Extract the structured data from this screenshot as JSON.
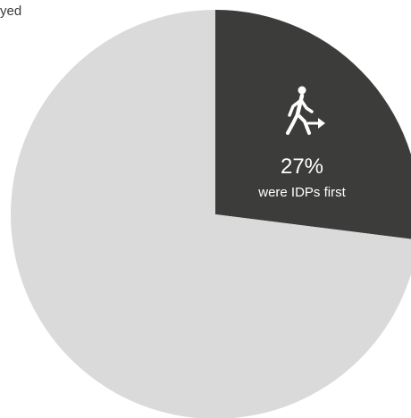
{
  "header_fragment": "yed",
  "chart_data": {
    "type": "pie",
    "slices": [
      {
        "label": "were IDPs first",
        "value": 27,
        "display": "27%",
        "color": "#3c3c3b"
      },
      {
        "label": "",
        "value": 73,
        "display": "",
        "color": "#dadada"
      }
    ],
    "start_angle_deg": 0,
    "direction": "clockwise",
    "icon": "walking-person-arrow-icon"
  }
}
